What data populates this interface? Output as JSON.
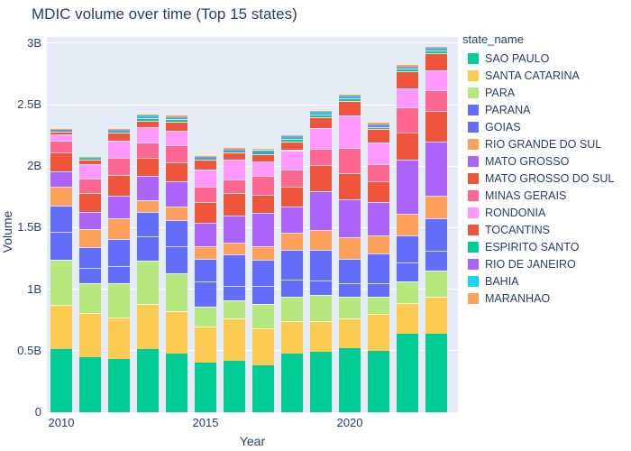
{
  "title": "MDIC volume over time (Top 15 states)",
  "colors": {
    "text": "#2a3f5f",
    "plot_bg": "#E5ECF6",
    "grid": "#ffffff",
    "page_bg": "#ffffff"
  },
  "chart_data": {
    "type": "bar",
    "stacked": true,
    "title": "MDIC volume over time (Top 15 states)",
    "xlabel": "Year",
    "ylabel": "Volume",
    "legend_title": "state_name",
    "legend_position": "right",
    "grid": true,
    "unit": "billions",
    "ylim": [
      0,
      3.05
    ],
    "x": [
      2010,
      2011,
      2012,
      2013,
      2014,
      2015,
      2016,
      2017,
      2018,
      2019,
      2020,
      2021,
      2022,
      2023
    ],
    "x_ticks": [
      {
        "v": 2010,
        "label": "2010"
      },
      {
        "v": 2015,
        "label": "2015"
      },
      {
        "v": 2020,
        "label": "2020"
      }
    ],
    "y_ticks": [
      {
        "v": 0,
        "label": "0"
      },
      {
        "v": 0.5,
        "label": "0.5B"
      },
      {
        "v": 1,
        "label": "1B"
      },
      {
        "v": 1.5,
        "label": "1.5B"
      },
      {
        "v": 2,
        "label": "2B"
      },
      {
        "v": 2.5,
        "label": "2.5B"
      },
      {
        "v": 3,
        "label": "3B"
      }
    ],
    "series": [
      {
        "name": "SAO PAULO",
        "color": "#00CC96",
        "values": [
          0.51,
          0.45,
          0.43,
          0.51,
          0.48,
          0.4,
          0.42,
          0.38,
          0.48,
          0.49,
          0.52,
          0.5,
          0.64,
          0.64
        ]
      },
      {
        "name": "SANTA CATARINA",
        "color": "#FECB52",
        "values": [
          0.36,
          0.36,
          0.34,
          0.37,
          0.34,
          0.3,
          0.34,
          0.3,
          0.26,
          0.25,
          0.24,
          0.3,
          0.25,
          0.3
        ]
      },
      {
        "name": "PARA",
        "color": "#B6E880",
        "values": [
          0.37,
          0.24,
          0.28,
          0.35,
          0.31,
          0.16,
          0.15,
          0.2,
          0.2,
          0.21,
          0.18,
          0.14,
          0.17,
          0.21
        ]
      },
      {
        "name": "PARANA",
        "color": "#636EFA",
        "values": [
          0.23,
          0.12,
          0.14,
          0.2,
          0.22,
          0.2,
          0.12,
          0.15,
          0.14,
          0.12,
          0.11,
          0.11,
          0.16,
          0.16
        ]
      },
      {
        "name": "GOIAS",
        "color": "#636EFA",
        "values": [
          0.21,
          0.17,
          0.22,
          0.2,
          0.21,
          0.19,
          0.25,
          0.21,
          0.24,
          0.25,
          0.2,
          0.24,
          0.22,
          0.27
        ]
      },
      {
        "name": "RIO GRANDE DO SUL",
        "color": "#FFA15A",
        "values": [
          0.15,
          0.15,
          0.17,
          0.09,
          0.11,
          0.1,
          0.1,
          0.11,
          0.14,
          0.16,
          0.17,
          0.15,
          0.17,
          0.18
        ]
      },
      {
        "name": "MATO GROSSO",
        "color": "#AB63FA",
        "values": [
          0.13,
          0.14,
          0.18,
          0.2,
          0.21,
          0.19,
          0.22,
          0.27,
          0.21,
          0.32,
          0.31,
          0.27,
          0.44,
          0.44
        ]
      },
      {
        "name": "MATO GROSSO DO SUL",
        "color": "#EF553B",
        "values": [
          0.15,
          0.15,
          0.17,
          0.15,
          0.15,
          0.17,
          0.18,
          0.15,
          0.16,
          0.21,
          0.21,
          0.17,
          0.22,
          0.25
        ]
      },
      {
        "name": "MINAS GERAIS",
        "color": "#FF6692",
        "values": [
          0.1,
          0.12,
          0.14,
          0.12,
          0.14,
          0.12,
          0.11,
          0.15,
          0.14,
          0.13,
          0.21,
          0.14,
          0.21,
          0.17
        ]
      },
      {
        "name": "RONDONIA",
        "color": "#FF97FF",
        "values": [
          0.05,
          0.12,
          0.14,
          0.13,
          0.12,
          0.14,
          0.16,
          0.12,
          0.16,
          0.17,
          0.26,
          0.17,
          0.15,
          0.16
        ]
      },
      {
        "name": "TOCANTINS",
        "color": "#EF553B",
        "values": [
          0.02,
          0.03,
          0.06,
          0.05,
          0.07,
          0.08,
          0.06,
          0.06,
          0.07,
          0.09,
          0.12,
          0.11,
          0.14,
          0.14
        ]
      },
      {
        "name": "ESPIRITO SANTO",
        "color": "#00CC96",
        "values": [
          0.01,
          0.01,
          0.01,
          0.02,
          0.02,
          0.01,
          0.01,
          0.01,
          0.02,
          0.02,
          0.02,
          0.02,
          0.02,
          0.02
        ]
      },
      {
        "name": "RIO DE JANEIRO",
        "color": "#AB63FA",
        "values": [
          0.005,
          0.005,
          0.01,
          0.01,
          0.01,
          0.01,
          0.01,
          0.01,
          0.01,
          0.01,
          0.01,
          0.01,
          0.01,
          0.01
        ]
      },
      {
        "name": "BAHIA",
        "color": "#19D3F3",
        "values": [
          0.005,
          0.005,
          0.005,
          0.01,
          0.01,
          0.005,
          0.005,
          0.01,
          0.01,
          0.01,
          0.01,
          0.01,
          0.01,
          0.01
        ]
      },
      {
        "name": "MARANHAO",
        "color": "#FFA15A",
        "values": [
          0.005,
          0.005,
          0.005,
          0.01,
          0.01,
          0.01,
          0.01,
          0.01,
          0.01,
          0.01,
          0.02,
          0.01,
          0.02,
          0.02
        ]
      }
    ]
  }
}
